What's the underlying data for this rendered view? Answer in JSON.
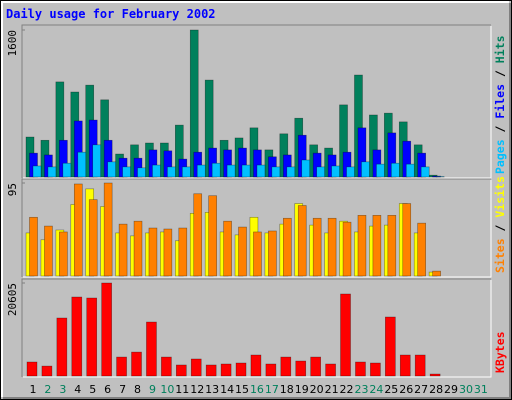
{
  "title": "Daily usage for February 2002",
  "legend_separator": " / ",
  "chart_data": [
    {
      "type": "bar",
      "ylim": [
        0,
        1600
      ],
      "yticks": [
        1600
      ],
      "series": [
        {
          "name": "Hits",
          "color": "#00805c",
          "values": [
            435,
            400,
            1035,
            925,
            1000,
            840,
            250,
            350,
            370,
            370,
            565,
            1600,
            1055,
            400,
            425,
            535,
            295,
            470,
            640,
            350,
            315,
            785,
            1110,
            675,
            695,
            600,
            350,
            20,
            null,
            null,
            null
          ]
        },
        {
          "name": "Files",
          "color": "#0000ff",
          "values": [
            260,
            240,
            400,
            610,
            620,
            400,
            205,
            205,
            295,
            285,
            195,
            270,
            315,
            295,
            315,
            295,
            220,
            240,
            455,
            260,
            240,
            270,
            535,
            295,
            480,
            390,
            260,
            10,
            null,
            null,
            null
          ]
        },
        {
          "name": "Pages",
          "color": "#00c0ff",
          "values": [
            120,
            110,
            150,
            270,
            350,
            165,
            110,
            100,
            130,
            110,
            110,
            130,
            150,
            130,
            130,
            130,
            110,
            110,
            185,
            110,
            120,
            110,
            165,
            140,
            150,
            140,
            110,
            5,
            null,
            null,
            null
          ]
        }
      ]
    },
    {
      "type": "bar",
      "ylim": [
        0,
        95
      ],
      "yticks": [
        95
      ],
      "series": [
        {
          "name": "Visits",
          "color": "#ffff00",
          "values": [
            44,
            37,
            47,
            73,
            89,
            71,
            44,
            41,
            44,
            45,
            36,
            64,
            65,
            45,
            42,
            60,
            44,
            53,
            74,
            52,
            44,
            56,
            45,
            51,
            52,
            74,
            44,
            4,
            null,
            null,
            null
          ]
        },
        {
          "name": "Sites",
          "color": "#ff8000",
          "values": [
            60,
            51,
            45,
            94,
            78,
            95,
            53,
            56,
            49,
            48,
            49,
            84,
            82,
            56,
            50,
            45,
            46,
            59,
            72,
            59,
            59,
            55,
            62,
            62,
            62,
            74,
            54,
            5,
            null,
            null,
            null
          ]
        }
      ]
    },
    {
      "type": "bar",
      "ylim": [
        0,
        20605
      ],
      "yticks": [
        20605
      ],
      "categories": [
        "1",
        "2",
        "3",
        "4",
        "5",
        "6",
        "7",
        "8",
        "9",
        "10",
        "11",
        "12",
        "13",
        "14",
        "15",
        "16",
        "17",
        "18",
        "19",
        "20",
        "21",
        "22",
        "23",
        "24",
        "25",
        "26",
        "27",
        "28",
        "29",
        "30",
        "31"
      ],
      "category_colors": [
        "#000000",
        "#00805c",
        "#00805c",
        "#000000",
        "#000000",
        "#000000",
        "#000000",
        "#000000",
        "#00805c",
        "#00805c",
        "#000000",
        "#000000",
        "#000000",
        "#000000",
        "#000000",
        "#00805c",
        "#00805c",
        "#000000",
        "#000000",
        "#000000",
        "#000000",
        "#000000",
        "#00805c",
        "#00805c",
        "#000000",
        "#000000",
        "#000000",
        "#000000",
        "#000000",
        "#00805c",
        "#00805c"
      ],
      "series": [
        {
          "name": "KBytes",
          "color": "#ff0000",
          "values": [
            3100,
            2200,
            12850,
            17500,
            17280,
            20605,
            4200,
            5300,
            11960,
            4200,
            2440,
            3770,
            2440,
            2660,
            2880,
            4650,
            2660,
            4200,
            3320,
            4200,
            2660,
            18170,
            3100,
            2880,
            13070,
            4650,
            4650,
            440,
            null,
            null,
            null
          ]
        }
      ]
    }
  ]
}
